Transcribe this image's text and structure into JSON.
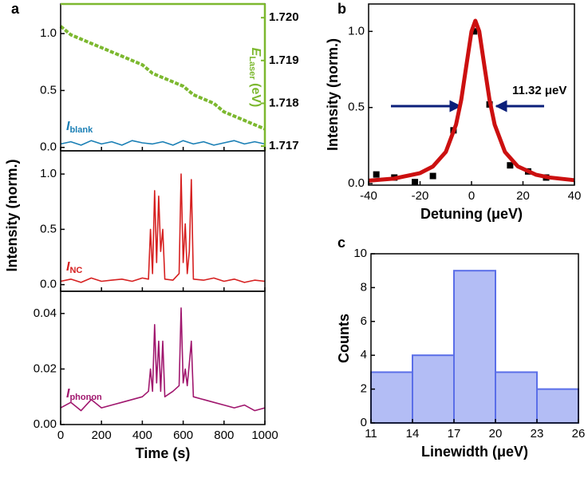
{
  "chart_data": [
    {
      "type": "line",
      "panel": "a",
      "xlim": [
        0,
        1000
      ],
      "ylim": [
        -0.03,
        1.26
      ],
      "yticks": [
        {
          "value": 0,
          "label": "0.0"
        },
        0.5,
        {
          "value": 1,
          "label": "1.0"
        }
      ],
      "y2lim": [
        1.71689,
        1.72032
      ],
      "y2ticks": [
        1.717,
        1.718,
        1.719,
        {
          "value": 1.72,
          "label": "1.720"
        }
      ],
      "y2_label": {
        "main": "E",
        "sub": "Laser",
        "rest": " (eV)"
      },
      "y2_color": "#7cb82f",
      "annotation": {
        "main": "I",
        "sub": "blank"
      },
      "x": [
        0,
        50,
        100,
        150,
        200,
        250,
        300,
        350,
        400,
        450,
        500,
        550,
        600,
        650,
        700,
        750,
        800,
        850,
        900,
        950,
        1000
      ],
      "series": [
        {
          "color": "#1a7fb5",
          "values": [
            0.03,
            0.05,
            0.02,
            0.06,
            0.03,
            0.05,
            0.02,
            0.06,
            0.04,
            0.03,
            0.05,
            0.02,
            0.06,
            0.03,
            0.05,
            0.02,
            0.04,
            0.06,
            0.03,
            0.05,
            0.03
          ]
        },
        {
          "color": "#7cb82f",
          "axis": "y2",
          "values": [
            1.7198,
            1.7196,
            1.7195,
            1.7194,
            1.7193,
            1.7192,
            1.7191,
            1.719,
            1.7189,
            1.7187,
            1.7186,
            1.7185,
            1.7184,
            1.7182,
            1.7181,
            1.718,
            1.7178,
            1.7177,
            1.7176,
            1.7175,
            1.7174
          ]
        }
      ]
    },
    {
      "type": "line",
      "xlim": [
        0,
        1000
      ],
      "ylim": [
        -0.06,
        1.21
      ],
      "yticks": [
        {
          "value": 0,
          "label": "0.0"
        },
        0.5,
        {
          "value": 1,
          "label": "1.0"
        }
      ],
      "y_label": "Intensity (norm.)",
      "annotation": {
        "main": "I",
        "sub": "NC"
      },
      "x": [
        0,
        50,
        100,
        150,
        200,
        250,
        300,
        350,
        400,
        430,
        440,
        450,
        460,
        470,
        480,
        490,
        500,
        510,
        550,
        580,
        590,
        600,
        610,
        620,
        630,
        640,
        650,
        700,
        750,
        800,
        850,
        900,
        950,
        1000
      ],
      "series": [
        {
          "color": "#d62020",
          "values": [
            0.03,
            0.05,
            0.02,
            0.06,
            0.03,
            0.04,
            0.05,
            0.03,
            0.06,
            0.05,
            0.5,
            0.1,
            0.85,
            0.2,
            0.8,
            0.3,
            0.5,
            0.05,
            0.04,
            0.1,
            1.0,
            0.2,
            0.55,
            0.1,
            0.3,
            0.95,
            0.05,
            0.04,
            0.06,
            0.03,
            0.05,
            0.02,
            0.04,
            0.03
          ]
        }
      ]
    },
    {
      "type": "line",
      "xlim": [
        0,
        1000
      ],
      "ylim": [
        0,
        0.048
      ],
      "xticks": [
        0,
        200,
        400,
        600,
        800,
        1000
      ],
      "x_label": "Time (s)",
      "yticks": [
        {
          "value": 0,
          "label": "0.00"
        },
        0.02,
        0.04
      ],
      "annotation": {
        "main": "I",
        "sub": "phonon"
      },
      "x": [
        0,
        50,
        100,
        150,
        200,
        250,
        300,
        350,
        400,
        430,
        440,
        450,
        460,
        470,
        480,
        490,
        500,
        510,
        550,
        580,
        590,
        600,
        610,
        620,
        630,
        640,
        650,
        700,
        750,
        800,
        850,
        900,
        950,
        1000
      ],
      "series": [
        {
          "color": "#a0176e",
          "values": [
            0.006,
            0.008,
            0.005,
            0.009,
            0.006,
            0.007,
            0.008,
            0.009,
            0.01,
            0.012,
            0.02,
            0.012,
            0.036,
            0.015,
            0.03,
            0.012,
            0.03,
            0.01,
            0.012,
            0.014,
            0.042,
            0.015,
            0.02,
            0.014,
            0.022,
            0.03,
            0.01,
            0.009,
            0.008,
            0.007,
            0.006,
            0.007,
            0.005,
            0.006
          ]
        }
      ]
    },
    {
      "type": "scatter",
      "panel": "b",
      "xlim": [
        -40,
        40
      ],
      "ylim": [
        -0.01,
        1.18
      ],
      "xticks": [
        -40,
        -20,
        0,
        20,
        40
      ],
      "yticks": [
        {
          "value": 0,
          "label": "0.0"
        },
        0.5,
        {
          "value": 1,
          "label": "1.0"
        }
      ],
      "x_label": "Detuning (μeV)",
      "y_label": "Intensity (norm.)",
      "annotation": "11.32 μeV",
      "series": [
        {
          "color": "#000000",
          "x": [
            -37,
            -30,
            -22,
            -15,
            -7,
            1,
            7,
            15,
            22,
            29
          ],
          "values": [
            0.06,
            0.04,
            0.01,
            0.05,
            0.35,
            1.0,
            0.52,
            0.12,
            0.08,
            0.04
          ]
        },
        {
          "color": "#cc1010",
          "x": [
            -40,
            -30,
            -20,
            -15,
            -10,
            -6,
            -4,
            -2,
            0,
            1.5,
            3,
            5,
            7,
            9,
            13,
            18,
            25,
            30,
            40
          ],
          "values": [
            0.0195,
            0.0334,
            0.0692,
            0.1126,
            0.208,
            0.388,
            0.55,
            0.774,
            1.0,
            1.07,
            1.0,
            0.774,
            0.55,
            0.388,
            0.208,
            0.113,
            0.0588,
            0.0407,
            0.0226
          ]
        }
      ]
    },
    {
      "type": "histogram",
      "panel": "c",
      "xlim": [
        11,
        26
      ],
      "ylim": [
        0,
        10
      ],
      "xticks": [
        11,
        14,
        17,
        20,
        23,
        26
      ],
      "yticks": [
        0,
        2,
        4,
        6,
        8,
        10
      ],
      "x_label": "Linewidth (μeV)",
      "y_label": "Counts",
      "color": "#b3bdf5",
      "bins": [
        11,
        14,
        17,
        20,
        23,
        26
      ],
      "counts": [
        3,
        4,
        9,
        3,
        2
      ]
    }
  ]
}
